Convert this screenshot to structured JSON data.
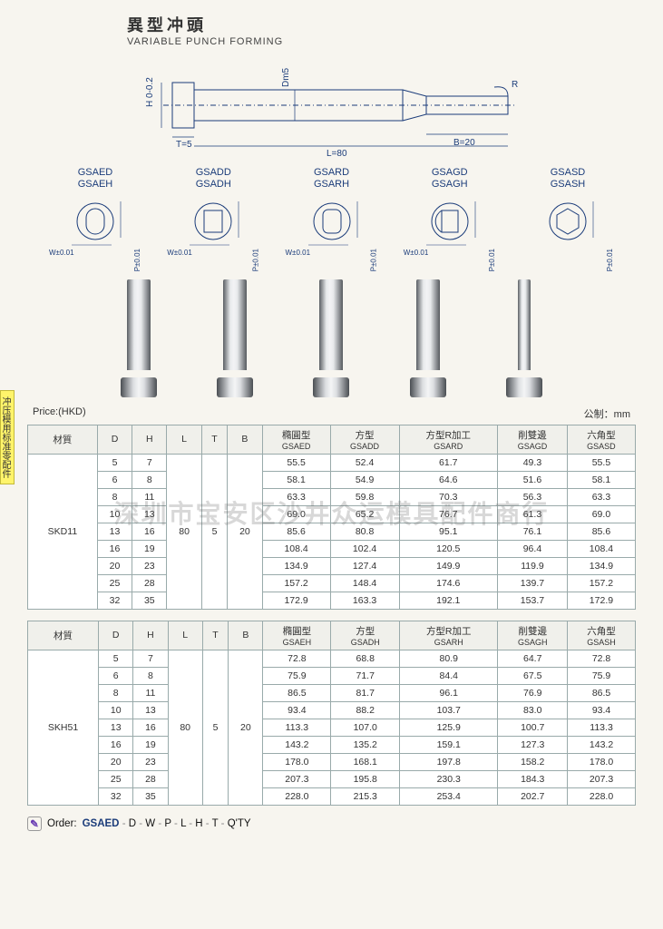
{
  "title": {
    "cn": "異型冲頭",
    "en": "VARIABLE PUNCH FORMING"
  },
  "drawing": {
    "labels": {
      "H": "H 0-0.2",
      "T": "T=5",
      "L": "L=80",
      "Dm5": "Dm5",
      "R": "R",
      "B": "B=20"
    }
  },
  "cross_sections": [
    {
      "code1": "GSAED",
      "code2": "GSAEH",
      "shape": "oval",
      "tol_w": "W±0.01",
      "tol_p": "P±0.01"
    },
    {
      "code1": "GSADD",
      "code2": "GSADH",
      "shape": "rect",
      "tol_w": "W±0.01",
      "tol_p": "P±0.01"
    },
    {
      "code1": "GSARD",
      "code2": "GSARH",
      "shape": "oval2",
      "tol_w": "W±0.01",
      "tol_p": "P±0.01"
    },
    {
      "code1": "GSAGD",
      "code2": "GSAGH",
      "shape": "dshape",
      "tol_w": "W±0.01",
      "tol_p": "P±0.01"
    },
    {
      "code1": "GSASD",
      "code2": "GSASH",
      "shape": "hex",
      "tol_w": "",
      "tol_p": "P±0.01"
    }
  ],
  "price_line": {
    "left": "Price:(HKD)",
    "right": "公制：mm"
  },
  "table1": {
    "headers": {
      "mat": "材質",
      "D": "D",
      "H": "H",
      "L": "L",
      "T": "T",
      "B": "B",
      "c1": {
        "cn": "橢圓型",
        "code": "GSAED"
      },
      "c2": {
        "cn": "方型",
        "code": "GSADD"
      },
      "c3": {
        "cn": "方型R加工",
        "code": "GSARD"
      },
      "c4": {
        "cn": "削雙邊",
        "code": "GSAGD"
      },
      "c5": {
        "cn": "六角型",
        "code": "GSASD"
      }
    },
    "material": "SKD11",
    "L": "80",
    "T": "5",
    "B": "20",
    "rows": [
      {
        "D": "5",
        "H": "7",
        "v": [
          "55.5",
          "52.4",
          "61.7",
          "49.3",
          "55.5"
        ]
      },
      {
        "D": "6",
        "H": "8",
        "v": [
          "58.1",
          "54.9",
          "64.6",
          "51.6",
          "58.1"
        ]
      },
      {
        "D": "8",
        "H": "11",
        "v": [
          "63.3",
          "59.8",
          "70.3",
          "56.3",
          "63.3"
        ]
      },
      {
        "D": "10",
        "H": "13",
        "v": [
          "69.0",
          "65.2",
          "76.7",
          "61.3",
          "69.0"
        ]
      },
      {
        "D": "13",
        "H": "16",
        "v": [
          "85.6",
          "80.8",
          "95.1",
          "76.1",
          "85.6"
        ]
      },
      {
        "D": "16",
        "H": "19",
        "v": [
          "108.4",
          "102.4",
          "120.5",
          "96.4",
          "108.4"
        ]
      },
      {
        "D": "20",
        "H": "23",
        "v": [
          "134.9",
          "127.4",
          "149.9",
          "119.9",
          "134.9"
        ]
      },
      {
        "D": "25",
        "H": "28",
        "v": [
          "157.2",
          "148.4",
          "174.6",
          "139.7",
          "157.2"
        ]
      },
      {
        "D": "32",
        "H": "35",
        "v": [
          "172.9",
          "163.3",
          "192.1",
          "153.7",
          "172.9"
        ]
      }
    ]
  },
  "table2": {
    "headers": {
      "mat": "材質",
      "D": "D",
      "H": "H",
      "L": "L",
      "T": "T",
      "B": "B",
      "c1": {
        "cn": "橢圓型",
        "code": "GSAEH"
      },
      "c2": {
        "cn": "方型",
        "code": "GSADH"
      },
      "c3": {
        "cn": "方型R加工",
        "code": "GSARH"
      },
      "c4": {
        "cn": "削雙邊",
        "code": "GSAGH"
      },
      "c5": {
        "cn": "六角型",
        "code": "GSASH"
      }
    },
    "material": "SKH51",
    "L": "80",
    "T": "5",
    "B": "20",
    "rows": [
      {
        "D": "5",
        "H": "7",
        "v": [
          "72.8",
          "68.8",
          "80.9",
          "64.7",
          "72.8"
        ]
      },
      {
        "D": "6",
        "H": "8",
        "v": [
          "75.9",
          "71.7",
          "84.4",
          "67.5",
          "75.9"
        ]
      },
      {
        "D": "8",
        "H": "11",
        "v": [
          "86.5",
          "81.7",
          "96.1",
          "76.9",
          "86.5"
        ]
      },
      {
        "D": "10",
        "H": "13",
        "v": [
          "93.4",
          "88.2",
          "103.7",
          "83.0",
          "93.4"
        ]
      },
      {
        "D": "13",
        "H": "16",
        "v": [
          "113.3",
          "107.0",
          "125.9",
          "100.7",
          "113.3"
        ]
      },
      {
        "D": "16",
        "H": "19",
        "v": [
          "143.2",
          "135.2",
          "159.1",
          "127.3",
          "143.2"
        ]
      },
      {
        "D": "20",
        "H": "23",
        "v": [
          "178.0",
          "168.1",
          "197.8",
          "158.2",
          "178.0"
        ]
      },
      {
        "D": "25",
        "H": "28",
        "v": [
          "207.3",
          "195.8",
          "230.3",
          "184.3",
          "207.3"
        ]
      },
      {
        "D": "32",
        "H": "35",
        "v": [
          "228.0",
          "215.3",
          "253.4",
          "202.7",
          "228.0"
        ]
      }
    ]
  },
  "order": {
    "label": "Order:",
    "parts": [
      "GSAED",
      "D",
      "W",
      "P",
      "L",
      "H",
      "T",
      "Q'TY"
    ]
  },
  "watermark": "深圳市宝安区沙井众运模具配件商行",
  "side_tab": "冲压模用标准零配件",
  "colors": {
    "accent": "#1b3c7a",
    "table_border": "#9aa",
    "bg": "#f7f5ef",
    "side_tab_bg": "#fff46b"
  }
}
